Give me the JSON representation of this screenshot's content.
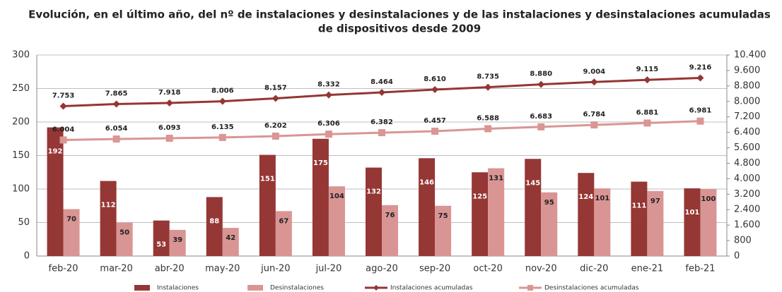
{
  "chart_data": {
    "type": "bar",
    "title": [
      "Evolución, en el último año, del nº de instalaciones y desinstalaciones y de las instalaciones y desinstalaciones acumuladas",
      "de dispositivos desde 2009"
    ],
    "categories": [
      "feb-20",
      "mar-20",
      "abr-20",
      "may-20",
      "jun-20",
      "jul-20",
      "ago-20",
      "sep-20",
      "oct-20",
      "nov-20",
      "dic-20",
      "ene-21",
      "feb-21"
    ],
    "series": [
      {
        "name": "Instalaciones",
        "type": "bar",
        "color": "#953735",
        "values": [
          192,
          112,
          53,
          88,
          151,
          175,
          132,
          146,
          125,
          145,
          124,
          111,
          101
        ]
      },
      {
        "name": "Desinstalaciones",
        "type": "bar",
        "color": "#d99594",
        "values": [
          70,
          50,
          39,
          42,
          67,
          104,
          76,
          75,
          131,
          95,
          101,
          97,
          100
        ]
      },
      {
        "name": "Instalaciones acumuladas",
        "type": "line",
        "axis": "y2",
        "color": "#943634",
        "marker": "diamond",
        "values": [
          7753,
          7865,
          7918,
          8006,
          8157,
          8332,
          8464,
          8610,
          8735,
          8880,
          9004,
          9115,
          9216
        ],
        "value_labels": [
          "7.753",
          "7.865",
          "7.918",
          "8.006",
          "8.157",
          "8.332",
          "8.464",
          "8.610",
          "8.735",
          "8.880",
          "9.004",
          "9.115",
          "9.216"
        ]
      },
      {
        "name": "Desinstalaciones acumuladas",
        "type": "line",
        "axis": "y2",
        "color": "#d99694",
        "marker": "square",
        "values": [
          6004,
          6054,
          6093,
          6135,
          6202,
          6306,
          6382,
          6457,
          6588,
          6683,
          6784,
          6881,
          6981
        ],
        "value_labels": [
          "6.004",
          "6.054",
          "6.093",
          "6.135",
          "6.202",
          "6.306",
          "6.382",
          "6.457",
          "6.588",
          "6.683",
          "6.784",
          "6.881",
          "6.981"
        ]
      }
    ],
    "ylim": [
      0,
      300
    ],
    "yticks": [
      0,
      50,
      100,
      150,
      200,
      250,
      300
    ],
    "y2lim": [
      0,
      10400
    ],
    "y2ticks": [
      0,
      800,
      {
        "value": 1600,
        "label": "1.600"
      },
      {
        "value": 2400,
        "label": "2.400"
      },
      {
        "value": 3200,
        "label": "3.200"
      },
      {
        "value": 4000,
        "label": "4.000"
      },
      {
        "value": 4800,
        "label": "4.800"
      },
      {
        "value": 5600,
        "label": "5.600"
      },
      {
        "value": 6400,
        "label": "6.400"
      },
      {
        "value": 7200,
        "label": "7.200"
      },
      {
        "value": 8000,
        "label": "8.000"
      },
      {
        "value": 8800,
        "label": "8.800"
      },
      {
        "value": 9600,
        "label": "9.600"
      },
      {
        "value": 10400,
        "label": "10.400"
      }
    ],
    "grid": true,
    "legend": "bottom"
  }
}
